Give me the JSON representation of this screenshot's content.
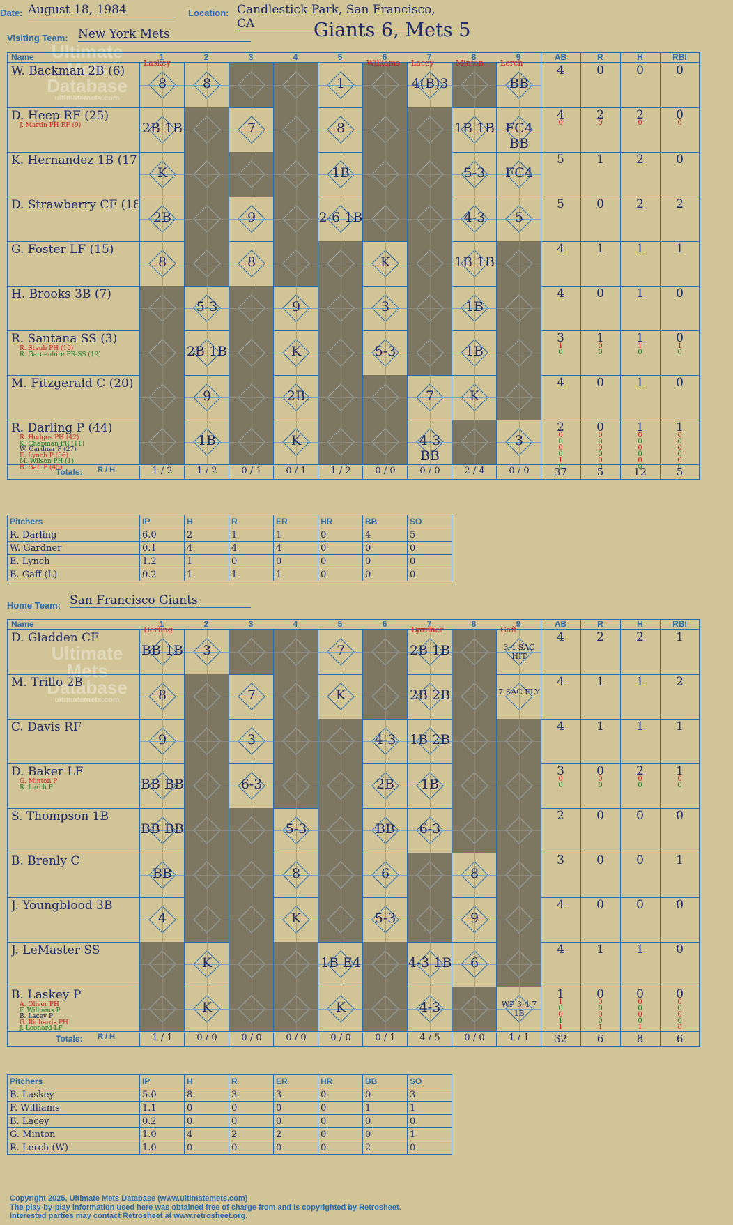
{
  "header": {
    "date_label": "Date:",
    "date": "August 18, 1984",
    "location_label": "Location:",
    "location": "Candlestick Park, San Francisco, CA",
    "visiting_label": "Visiting Team:",
    "visiting_team": "New York Mets",
    "result": "Giants 6, Mets 5",
    "home_label": "Home Team:",
    "home_team": "San Francisco Giants"
  },
  "columns": {
    "name": "Name",
    "innings": [
      "1",
      "2",
      "3",
      "4",
      "5",
      "6",
      "7",
      "8",
      "9"
    ],
    "ab": "AB",
    "r": "R",
    "h": "H",
    "rbi": "RBI",
    "totals": "Totals:",
    "r_short": "R",
    "h_short": "H"
  },
  "watermark": {
    "line1": "Ultimate",
    "line2": "Mets",
    "line3": "Database",
    "url": "ultimatemets.com"
  },
  "visitors": {
    "batters": [
      {
        "name": "W. Backman 2B (6)",
        "subs": [],
        "stats": [
          [
            "4",
            "0",
            "0",
            "0"
          ]
        ]
      },
      {
        "name": "D. Heep RF (25)",
        "subs": [
          {
            "t": "J. Martin PH-RF (9)",
            "c": "red"
          }
        ],
        "stats": [
          [
            "4",
            "2",
            "2",
            "0"
          ],
          [
            "0",
            "0",
            "0",
            "0"
          ]
        ]
      },
      {
        "name": "K. Hernandez 1B (17)",
        "subs": [],
        "stats": [
          [
            "5",
            "1",
            "2",
            "0"
          ]
        ]
      },
      {
        "name": "D. Strawberry CF (18)",
        "subs": [],
        "stats": [
          [
            "5",
            "0",
            "2",
            "2"
          ]
        ]
      },
      {
        "name": "G. Foster LF (15)",
        "subs": [],
        "stats": [
          [
            "4",
            "1",
            "1",
            "1"
          ]
        ]
      },
      {
        "name": "H. Brooks 3B (7)",
        "subs": [],
        "stats": [
          [
            "4",
            "0",
            "1",
            "0"
          ]
        ]
      },
      {
        "name": "R. Santana SS (3)",
        "subs": [
          {
            "t": "R. Staub PH (10)",
            "c": "red"
          },
          {
            "t": "R. Gardenhire PR-SS (19)",
            "c": "grn"
          }
        ],
        "stats": [
          [
            "3",
            "1",
            "1",
            "0"
          ],
          [
            "1",
            "0",
            "1",
            "1"
          ],
          [
            "0",
            "0",
            "0",
            "0"
          ]
        ]
      },
      {
        "name": "M. Fitzgerald C (20)",
        "subs": [],
        "stats": [
          [
            "4",
            "0",
            "1",
            "0"
          ]
        ]
      },
      {
        "name": "R. Darling P (44)",
        "subs": [
          {
            "t": "R. Hodges PH (42)",
            "c": "red"
          },
          {
            "t": "K. Chapman PR (11)",
            "c": "grn"
          },
          {
            "t": "W. Gardner P (27)",
            "c": "blue"
          },
          {
            "t": "E. Lynch P (36)",
            "c": "red"
          },
          {
            "t": "M. Wilson PH (1)",
            "c": "grn"
          },
          {
            "t": "B. Gaff P (45)",
            "c": "red"
          }
        ],
        "stats": [
          [
            "2",
            "0",
            "1",
            "1"
          ],
          [
            "0",
            "0",
            "0",
            "0"
          ],
          [
            "0",
            "0",
            "0",
            "0"
          ],
          [
            "0",
            "0",
            "0",
            "0"
          ],
          [
            "0",
            "0",
            "0",
            "0"
          ],
          [
            "1",
            "0",
            "0",
            "0"
          ],
          [
            "0",
            "0",
            "0",
            "0"
          ]
        ]
      }
    ],
    "cells": [
      [
        "8",
        "8",
        "",
        "",
        "1",
        "",
        "4(B)3",
        "",
        "BB"
      ],
      [
        "2B 1B",
        "",
        "7",
        "",
        "8",
        "",
        "",
        "1B 1B",
        "FC4 BB"
      ],
      [
        "K",
        "",
        "",
        "",
        "1B",
        "",
        "",
        "5-3",
        "FC4"
      ],
      [
        "2B",
        "",
        "9",
        "",
        "2-6 1B",
        "",
        "",
        "4-3",
        "5"
      ],
      [
        "8",
        "",
        "8",
        "",
        "",
        "K",
        "",
        "1B 1B",
        ""
      ],
      [
        "",
        "5-3",
        "",
        "9",
        "",
        "3",
        "",
        "1B",
        ""
      ],
      [
        "",
        "2B 1B",
        "",
        "K",
        "",
        "5-3",
        "",
        "1B",
        ""
      ],
      [
        "",
        "9",
        "",
        "2B",
        "",
        "",
        "7",
        "K",
        ""
      ],
      [
        "",
        "1B",
        "",
        "K",
        "",
        "",
        "4-3 BB",
        "",
        "3"
      ]
    ],
    "pitchers_over": [
      [
        "Laskey",
        "1"
      ],
      [
        "Lacey",
        "7"
      ],
      [
        "Minton",
        "8"
      ],
      [
        "Williams",
        "6"
      ],
      [
        "Lerch",
        "9"
      ]
    ],
    "line": [
      [
        "1",
        "2"
      ],
      [
        "1",
        "2"
      ],
      [
        "0",
        "1"
      ],
      [
        "0",
        "1"
      ],
      [
        "1",
        "2"
      ],
      [
        "0",
        "0"
      ],
      [
        "0",
        "0"
      ],
      [
        "2",
        "4"
      ],
      [
        "0",
        "0"
      ]
    ],
    "totals": [
      "37",
      "5",
      "12",
      "5"
    ],
    "pitching": {
      "headers": [
        "Pitchers",
        "IP",
        "H",
        "R",
        "ER",
        "HR",
        "BB",
        "SO"
      ],
      "rows": [
        [
          "R. Darling",
          "6.0",
          "2",
          "1",
          "1",
          "0",
          "4",
          "5"
        ],
        [
          "W. Gardner",
          "0.1",
          "4",
          "4",
          "4",
          "0",
          "0",
          "0"
        ],
        [
          "E. Lynch",
          "1.2",
          "1",
          "0",
          "0",
          "0",
          "0",
          "0"
        ],
        [
          "B. Gaff (L)",
          "0.2",
          "1",
          "1",
          "1",
          "0",
          "0",
          "0"
        ]
      ]
    }
  },
  "home": {
    "batters": [
      {
        "name": "D. Gladden CF",
        "subs": [],
        "stats": [
          [
            "4",
            "2",
            "2",
            "1"
          ]
        ]
      },
      {
        "name": "M. Trillo 2B",
        "subs": [],
        "stats": [
          [
            "4",
            "1",
            "1",
            "2"
          ]
        ]
      },
      {
        "name": "C. Davis RF",
        "subs": [],
        "stats": [
          [
            "4",
            "1",
            "1",
            "1"
          ]
        ]
      },
      {
        "name": "D. Baker LF",
        "subs": [
          {
            "t": "G. Minton P",
            "c": "red"
          },
          {
            "t": "R. Lerch P",
            "c": "grn"
          }
        ],
        "stats": [
          [
            "3",
            "0",
            "2",
            "1"
          ],
          [
            "0",
            "0",
            "0",
            "0"
          ],
          [
            "0",
            "0",
            "0",
            "0"
          ]
        ]
      },
      {
        "name": "S. Thompson 1B",
        "subs": [],
        "stats": [
          [
            "2",
            "0",
            "0",
            "0"
          ]
        ]
      },
      {
        "name": "B. Brenly C",
        "subs": [],
        "stats": [
          [
            "3",
            "0",
            "0",
            "1"
          ]
        ]
      },
      {
        "name": "J. Youngblood 3B",
        "subs": [],
        "stats": [
          [
            "4",
            "0",
            "0",
            "0"
          ]
        ]
      },
      {
        "name": "J. LeMaster SS",
        "subs": [],
        "stats": [
          [
            "4",
            "1",
            "1",
            "0"
          ]
        ]
      },
      {
        "name": "B. Laskey P",
        "subs": [
          {
            "t": "A. Oliver PH",
            "c": "red"
          },
          {
            "t": "F. Williams P",
            "c": "grn"
          },
          {
            "t": "B. Lacey P",
            "c": "blue"
          },
          {
            "t": "G. Richards PH",
            "c": "red"
          },
          {
            "t": "J. Leonard LF",
            "c": "grn"
          }
        ],
        "stats": [
          [
            "1",
            "0",
            "0",
            "0"
          ],
          [
            "1",
            "0",
            "0",
            "0"
          ],
          [
            "0",
            "0",
            "0",
            "0"
          ],
          [
            "0",
            "0",
            "0",
            "0"
          ],
          [
            "1",
            "0",
            "0",
            "0"
          ],
          [
            "1",
            "1",
            "1",
            "0"
          ]
        ]
      }
    ],
    "cells": [
      [
        "BB 1B",
        "3",
        "",
        "",
        "7",
        "",
        "2B 1B",
        "",
        "3-4 SAC HIT"
      ],
      [
        "8",
        "",
        "7",
        "",
        "K",
        "",
        "2B 2B",
        "",
        "7 SAC FLY"
      ],
      [
        "9",
        "",
        "3",
        "",
        "",
        "4-3",
        "1B 2B",
        "",
        ""
      ],
      [
        "BB BB",
        "",
        "6-3",
        "",
        "",
        "2B",
        "1B",
        "",
        ""
      ],
      [
        "BB BB",
        "",
        "",
        "5-3",
        "",
        "BB",
        "6-3",
        "",
        ""
      ],
      [
        "BB",
        "",
        "",
        "8",
        "",
        "6",
        "",
        "8",
        ""
      ],
      [
        "4",
        "",
        "",
        "K",
        "",
        "5-3",
        "",
        "9",
        ""
      ],
      [
        "",
        "K",
        "",
        "",
        "1B E4",
        "",
        "4-3 1B",
        "6",
        ""
      ],
      [
        "",
        "K",
        "",
        "",
        "K",
        "",
        "4-3",
        "",
        "WP 3-4 7 1B"
      ]
    ],
    "pitchers_over": [
      [
        "Darling",
        "1"
      ],
      [
        "Lynch",
        "7"
      ],
      [
        "Gardner",
        "7"
      ],
      [
        "Gaff",
        "9"
      ]
    ],
    "line": [
      [
        "1",
        "1"
      ],
      [
        "0",
        "0"
      ],
      [
        "0",
        "0"
      ],
      [
        "0",
        "0"
      ],
      [
        "0",
        "0"
      ],
      [
        "0",
        "1"
      ],
      [
        "4",
        "5"
      ],
      [
        "0",
        "0"
      ],
      [
        "1",
        "1"
      ]
    ],
    "totals": [
      "32",
      "6",
      "8",
      "6"
    ],
    "pitching": {
      "headers": [
        "Pitchers",
        "IP",
        "H",
        "R",
        "ER",
        "HR",
        "BB",
        "SO"
      ],
      "rows": [
        [
          "B. Laskey",
          "5.0",
          "8",
          "3",
          "3",
          "0",
          "0",
          "3"
        ],
        [
          "F. Williams",
          "1.1",
          "0",
          "0",
          "0",
          "0",
          "1",
          "1"
        ],
        [
          "B. Lacey",
          "0.2",
          "0",
          "0",
          "0",
          "0",
          "0",
          "0"
        ],
        [
          "G. Minton",
          "1.0",
          "4",
          "2",
          "2",
          "0",
          "0",
          "1"
        ],
        [
          "R. Lerch (W)",
          "1.0",
          "0",
          "0",
          "0",
          "0",
          "2",
          "0"
        ]
      ]
    }
  },
  "footer": {
    "copyright": "Copyright 2025, Ultimate Mets Database (www.ultimatemets.com)",
    "line2": "The play-by-play information used here was obtained free of charge from and is copyrighted by Retrosheet.",
    "line3": "Interested parties may contact Retrosheet at www.retrosheet.org."
  }
}
